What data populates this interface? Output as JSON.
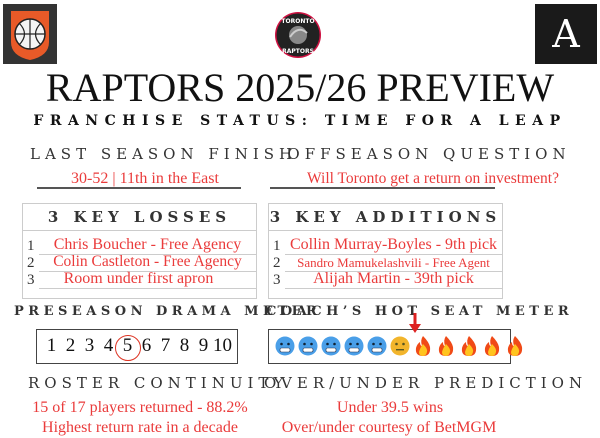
{
  "logos": {
    "left": "basketball-shield-logo",
    "center": "TORONTO RAPTORS",
    "right": "A"
  },
  "title": "RAPTORS 2025/26 PREVIEW",
  "subtitle": "FRANCHISE STATUS: TIME FOR A LEAP",
  "last_season": {
    "heading": "LAST SEASON FINISH",
    "value": "30-52 | 11th  in the East"
  },
  "offseason": {
    "heading": "OFFSEASON QUESTION",
    "value": "Will Toronto get a return on investment?"
  },
  "losses": {
    "heading": "3 KEY LOSSES",
    "items": [
      {
        "num": "1",
        "text": "Chris Boucher - Free Agency"
      },
      {
        "num": "2",
        "text": "Colin Castleton - Free Agency"
      },
      {
        "num": "3",
        "text": "Room under first apron"
      }
    ]
  },
  "additions": {
    "heading": "3 KEY ADDITIONS",
    "items": [
      {
        "num": "1",
        "text": "Collin Murray-Boyles - 9th pick"
      },
      {
        "num": "2",
        "text": "Sandro Mamukelashvili - Free Agent"
      },
      {
        "num": "3",
        "text": "Alijah Martin - 39th pick"
      }
    ]
  },
  "drama_meter": {
    "heading": "PRESEASON DRAMA METER",
    "scale": [
      "1",
      "2",
      "3",
      "4",
      "5",
      "6",
      "7",
      "8",
      "9",
      "10"
    ],
    "selected": 5
  },
  "hot_seat": {
    "heading": "COACH’S HOT SEAT METER",
    "icons": [
      "cold-face",
      "cold-face",
      "cold-face",
      "cold-face",
      "cold-face",
      "neutral-face",
      "fire",
      "fire",
      "fire",
      "fire",
      "fire"
    ],
    "selected_index": 7,
    "scale_max": 11
  },
  "roster": {
    "heading": "ROSTER CONTINUITY",
    "line1": "15 of 17 players returned - 88.2%",
    "line2": "Highest return rate in a decade"
  },
  "over_under": {
    "heading": "OVER/UNDER PREDICTION",
    "line1": "Under 39.5 wins",
    "line2": "Over/under courtesy of BetMGM"
  },
  "colors": {
    "accent": "#ea3b3b",
    "logo_orange": "#e85a28",
    "raptors_red": "#ce1141"
  }
}
